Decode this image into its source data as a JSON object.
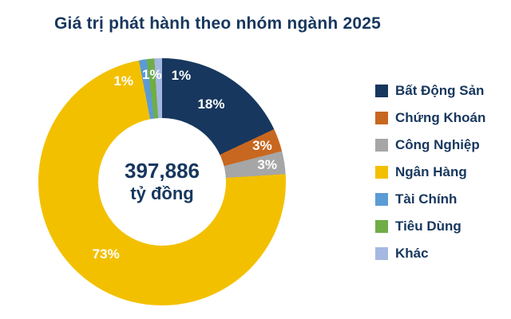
{
  "chart_data": {
    "type": "pie",
    "donut": true,
    "title": "Giá trị phát hành theo nhóm ngành 2025",
    "center_text": {
      "value": "397,886",
      "unit": "tỷ đồng"
    },
    "categories": [
      "Bất Động Sản",
      "Chứng Khoán",
      "Công Nghiệp",
      "Ngân Hàng",
      "Tài Chính",
      "Tiêu Dùng",
      "Khác"
    ],
    "values": [
      18,
      3,
      3,
      73,
      1,
      1,
      1
    ],
    "labels": [
      "18%",
      "3%",
      "3%",
      "73%",
      "1%",
      "1%",
      "1%"
    ],
    "colors": [
      "#17375E",
      "#C8671F",
      "#A6A6A6",
      "#F3C000",
      "#5B9BD5",
      "#70AD47",
      "#A5B8E1"
    ],
    "start_angle_deg": 0,
    "direction": "clockwise",
    "legend_position": "right",
    "title_color": "#17375E",
    "text_color": "#17375E",
    "label_color": "#FFFFFF",
    "background_color": "#FFFFFF"
  }
}
